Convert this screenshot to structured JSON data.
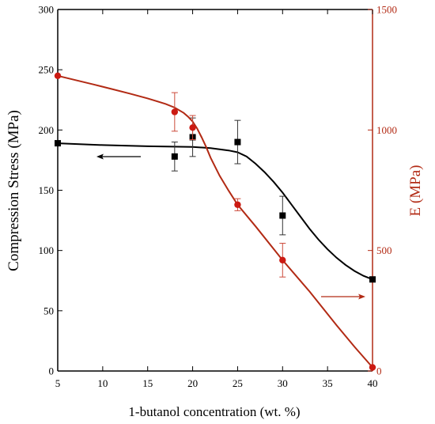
{
  "chart_data": {
    "type": "line",
    "xlabel": "1-butanol concentration (wt. %)",
    "x_ticks": [
      "5",
      "10",
      "15",
      "20",
      "25",
      "30",
      "35",
      "40"
    ],
    "xlim": [
      5,
      40
    ],
    "left_axis": {
      "label": "Compression Stress (MPa)",
      "ylim": [
        0,
        300
      ],
      "ticks": [
        "0",
        "50",
        "100",
        "150",
        "200",
        "250",
        "300"
      ],
      "color": "#000000"
    },
    "right_axis": {
      "label": "E (MPa)",
      "ylim": [
        0,
        1500
      ],
      "ticks": [
        "0",
        "500",
        "1000",
        "1500"
      ],
      "color": "#b22a14"
    },
    "grid": false,
    "series": [
      {
        "axis": "left",
        "marker": "square",
        "color": "#000000",
        "x": [
          5,
          18,
          20,
          25,
          30,
          40
        ],
        "y": [
          189,
          178,
          194,
          190,
          129,
          76
        ],
        "err": [
          0,
          12,
          16,
          18,
          16,
          0
        ],
        "fit_x": [
          5,
          10,
          15,
          20,
          22,
          24,
          25,
          26,
          27,
          28,
          29,
          30,
          31,
          32,
          33,
          34,
          35,
          36,
          37,
          38,
          39,
          40
        ],
        "fit_y": [
          189,
          187.5,
          186.5,
          186,
          185,
          183,
          181.5,
          178,
          172,
          165,
          157,
          148,
          138,
          128,
          118,
          109,
          101,
          94,
          88,
          83,
          79,
          76
        ]
      },
      {
        "axis": "right",
        "marker": "circle",
        "color": "#cc1a12",
        "line_color": "#b22a14",
        "x": [
          5,
          18,
          20,
          25,
          30,
          40
        ],
        "y": [
          1225,
          1075,
          1010,
          690,
          460,
          15
        ],
        "err": [
          0,
          80,
          50,
          25,
          70,
          0
        ],
        "fit_x": [
          5,
          7,
          9,
          11,
          13,
          15,
          17,
          18,
          19,
          19.5,
          20,
          20.5,
          21,
          21.5,
          22,
          23,
          24,
          25,
          27,
          30,
          33,
          36,
          38,
          40
        ],
        "fit_y": [
          1225,
          1207,
          1189,
          1170,
          1151,
          1131,
          1108,
          1093,
          1071,
          1055,
          1035,
          1006,
          970,
          930,
          885,
          810,
          748,
          690,
          600,
          460,
          330,
          190,
          100,
          15
        ]
      }
    ],
    "annotations": [
      {
        "type": "arrow",
        "direction": "left",
        "color": "#000000"
      },
      {
        "type": "arrow",
        "direction": "right",
        "color": "#b22a14"
      }
    ]
  }
}
